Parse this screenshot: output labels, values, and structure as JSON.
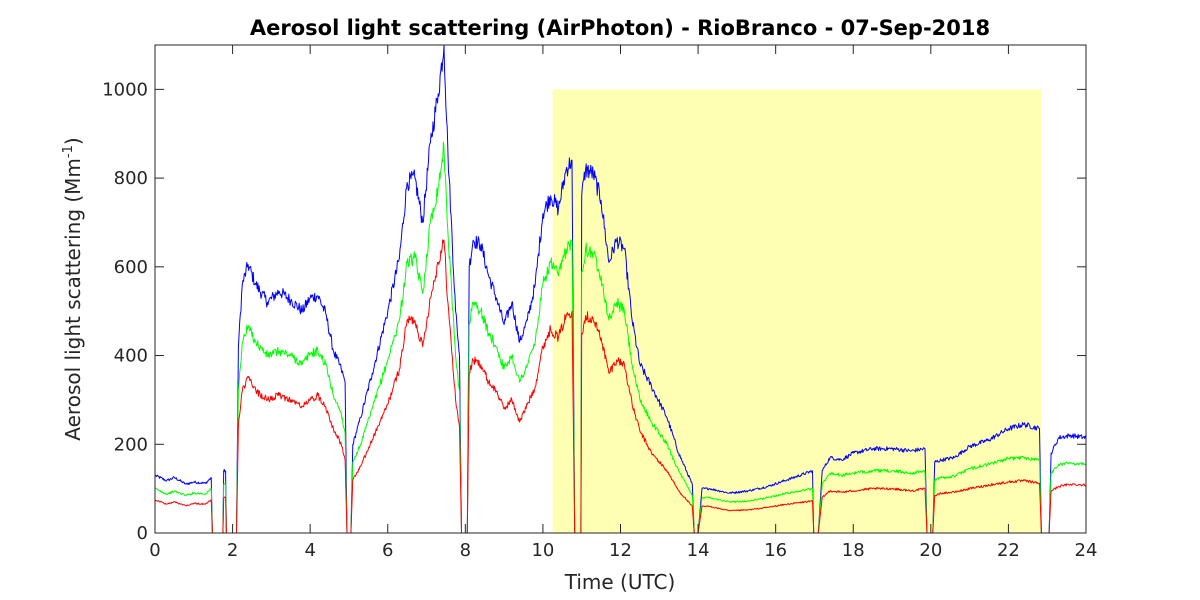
{
  "chart_data": {
    "type": "line",
    "title": "Aerosol light scattering (AirPhoton) - RioBranco - 07-Sep-2018",
    "xlabel": "Time (UTC)",
    "ylabel_prefix": "Aerosol light scattering (Mm",
    "ylabel_superscript": "-1",
    "ylabel_suffix": ")",
    "xlim": [
      0,
      24
    ],
    "ylim": [
      0,
      1100
    ],
    "xticks": [
      0,
      2,
      4,
      6,
      8,
      10,
      12,
      14,
      16,
      18,
      20,
      22,
      24
    ],
    "yticks": [
      0,
      200,
      400,
      600,
      800,
      1000
    ],
    "xtick_labels": [
      "0",
      "2",
      "4",
      "6",
      "8",
      "10",
      "12",
      "14",
      "16",
      "18",
      "20",
      "22",
      "24"
    ],
    "ytick_labels": [
      "0",
      "200",
      "400",
      "600",
      "800",
      "1000"
    ],
    "highlight": {
      "x": [
        10.25,
        22.85
      ],
      "y": [
        0,
        1000
      ],
      "color": "#ffffb4"
    },
    "grid": false,
    "x": [
      0,
      0.3,
      0.5,
      0.8,
      1.0,
      1.3,
      1.45,
      1.48,
      1.75,
      1.77,
      1.82,
      1.84,
      2.1,
      2.15,
      2.25,
      2.4,
      2.6,
      2.9,
      3.2,
      3.5,
      3.8,
      4.0,
      4.2,
      4.4,
      4.6,
      4.8,
      4.9,
      4.95,
      5.05,
      5.1,
      5.3,
      5.6,
      6.0,
      6.3,
      6.5,
      6.7,
      6.9,
      7.1,
      7.3,
      7.45,
      7.55,
      7.75,
      7.85,
      7.9,
      8.05,
      8.1,
      8.2,
      8.4,
      8.6,
      8.8,
      9.0,
      9.2,
      9.4,
      9.6,
      9.8,
      10.0,
      10.2,
      10.4,
      10.6,
      10.75,
      10.82,
      10.85,
      10.98,
      11.0,
      11.1,
      11.3,
      11.5,
      11.7,
      11.9,
      12.1,
      12.3,
      12.5,
      12.8,
      13.2,
      13.5,
      13.85,
      13.9,
      14.0,
      14.1,
      14.3,
      14.8,
      15.3,
      15.8,
      16.3,
      16.95,
      16.98,
      17.1,
      17.2,
      17.4,
      17.7,
      18.0,
      18.5,
      19.0,
      19.5,
      19.85,
      19.9,
      20.05,
      20.1,
      20.3,
      20.6,
      21.0,
      21.5,
      22.0,
      22.4,
      22.8,
      22.85,
      23.05,
      23.1,
      23.3,
      23.6,
      24.0
    ],
    "series": [
      {
        "color": "#0000ff",
        "values": [
          130,
          118,
          125,
          110,
          115,
          112,
          125,
          0,
          0,
          140,
          140,
          0,
          0,
          420,
          560,
          605,
          560,
          520,
          545,
          525,
          500,
          530,
          535,
          495,
          410,
          370,
          340,
          0,
          0,
          200,
          260,
          360,
          500,
          620,
          790,
          800,
          700,
          880,
          990,
          1100,
          860,
          500,
          400,
          0,
          0,
          600,
          660,
          650,
          580,
          530,
          470,
          520,
          430,
          480,
          560,
          720,
          760,
          730,
          820,
          840,
          0,
          0,
          0,
          760,
          820,
          810,
          750,
          610,
          660,
          640,
          480,
          380,
          330,
          260,
          180,
          110,
          0,
          0,
          100,
          100,
          90,
          95,
          105,
          120,
          140,
          0,
          0,
          140,
          170,
          165,
          180,
          190,
          190,
          185,
          190,
          0,
          0,
          160,
          165,
          170,
          195,
          210,
          235,
          245,
          235,
          0,
          0,
          180,
          215,
          220,
          215
        ]
      },
      {
        "color": "#00ff00",
        "values": [
          100,
          88,
          94,
          85,
          90,
          88,
          100,
          0,
          0,
          110,
          110,
          0,
          0,
          320,
          430,
          465,
          430,
          400,
          410,
          400,
          380,
          405,
          410,
          380,
          310,
          270,
          225,
          0,
          0,
          160,
          200,
          280,
          390,
          480,
          610,
          620,
          540,
          700,
          780,
          870,
          680,
          400,
          320,
          0,
          0,
          470,
          520,
          500,
          450,
          420,
          370,
          400,
          340,
          380,
          430,
          560,
          610,
          580,
          640,
          660,
          0,
          0,
          0,
          590,
          640,
          630,
          580,
          480,
          520,
          500,
          380,
          300,
          250,
          200,
          140,
          85,
          0,
          0,
          80,
          80,
          70,
          72,
          80,
          90,
          100,
          0,
          0,
          110,
          135,
          130,
          135,
          140,
          140,
          135,
          140,
          0,
          0,
          120,
          125,
          128,
          145,
          155,
          168,
          170,
          165,
          0,
          0,
          135,
          155,
          158,
          155
        ]
      },
      {
        "color": "#ff0000",
        "values": [
          75,
          65,
          70,
          62,
          67,
          65,
          75,
          0,
          0,
          80,
          80,
          0,
          0,
          240,
          320,
          350,
          320,
          300,
          310,
          300,
          285,
          300,
          310,
          285,
          235,
          200,
          165,
          0,
          0,
          120,
          150,
          210,
          290,
          370,
          480,
          480,
          420,
          530,
          610,
          660,
          520,
          300,
          240,
          0,
          0,
          360,
          390,
          380,
          340,
          320,
          280,
          300,
          250,
          290,
          330,
          420,
          460,
          440,
          490,
          500,
          0,
          0,
          0,
          450,
          490,
          480,
          440,
          360,
          390,
          380,
          290,
          230,
          180,
          140,
          95,
          60,
          0,
          0,
          60,
          60,
          50,
          52,
          58,
          65,
          72,
          0,
          0,
          80,
          95,
          92,
          95,
          100,
          100,
          95,
          100,
          0,
          0,
          85,
          90,
          92,
          100,
          108,
          115,
          118,
          112,
          0,
          0,
          95,
          105,
          110,
          108
        ]
      }
    ]
  }
}
